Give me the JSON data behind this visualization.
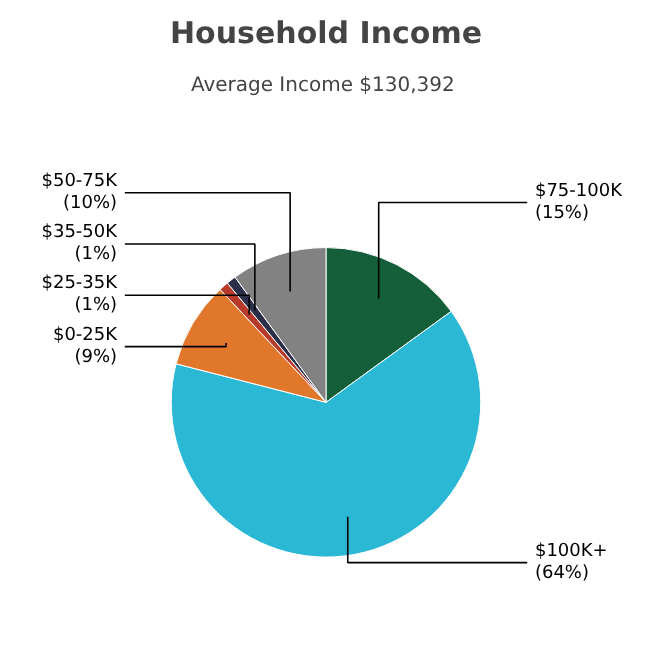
{
  "chart_data": {
    "type": "pie",
    "title": "Household Income",
    "subtitle": "Average Income  $130,392",
    "categories": [
      "$75-100K",
      "$100K+",
      "$0-25K",
      "$25-35K",
      "$35-50K",
      "$50-75K"
    ],
    "values": [
      15,
      64,
      9,
      1,
      1,
      10
    ],
    "value_labels": [
      "(15%)",
      "(64%)",
      "(9%)",
      "(1%)",
      "(1%)",
      "(10%)"
    ],
    "colors": [
      "#145e3a",
      "#2bb8d5",
      "#e0772b",
      "#b83a2a",
      "#2c2f4a",
      "#828282"
    ]
  }
}
